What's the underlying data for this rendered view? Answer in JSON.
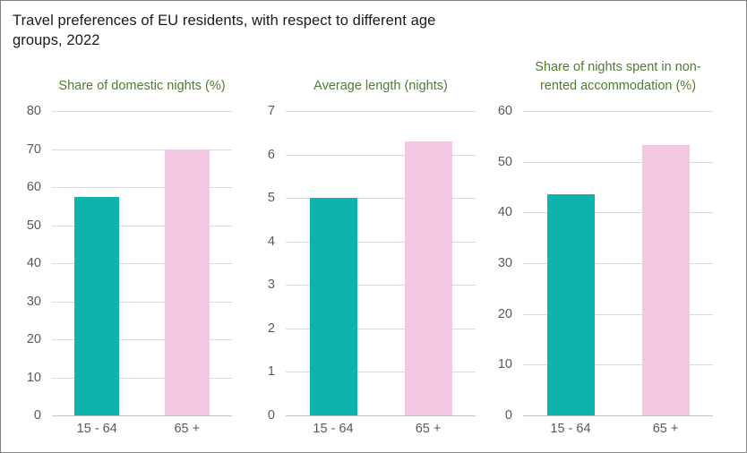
{
  "header": {
    "title": "Travel preferences of EU residents, with respect to different age groups, 2022",
    "title_line1": "Travel preferences of EU residents, with respect to different age",
    "title_line2": "groups, 2022"
  },
  "colors": {
    "bar_age_15_64": "#0db4ab",
    "bar_age_65_plus": "#f4c8e3",
    "panel_title_text": "#507c32",
    "main_title_text": "#1a1a1a",
    "axis_text": "#595959",
    "gridline": "#d9d9d9",
    "figure_border": "#7f7f7f"
  },
  "chart_data": [
    {
      "type": "bar",
      "title": "Share of domestic nights (%)",
      "categories": [
        "15 - 64",
        "65 +"
      ],
      "values": [
        57.3,
        70
      ],
      "ylim": [
        0,
        80
      ],
      "ytick_step": 10,
      "yticks": [
        0,
        10,
        20,
        30,
        40,
        50,
        60,
        70,
        80
      ],
      "grid": true,
      "legend": "none",
      "bar_colors": [
        "#0db4ab",
        "#f4c8e3"
      ]
    },
    {
      "type": "bar",
      "title": "Average length (nights)",
      "categories": [
        "15 - 64",
        "65 +"
      ],
      "values": [
        5.0,
        6.3
      ],
      "ylim": [
        0,
        7
      ],
      "ytick_step": 1,
      "yticks": [
        0,
        1,
        2,
        3,
        4,
        5,
        6,
        7
      ],
      "grid": true,
      "legend": "none",
      "bar_colors": [
        "#0db4ab",
        "#f4c8e3"
      ]
    },
    {
      "type": "bar",
      "title": "Share of nights spent in non-rented accommodation (%)",
      "categories": [
        "15 - 64",
        "65 +"
      ],
      "values": [
        43.6,
        53.3
      ],
      "ylim": [
        0,
        60
      ],
      "ytick_step": 10,
      "yticks": [
        0,
        10,
        20,
        30,
        40,
        50,
        60
      ],
      "grid": true,
      "legend": "none",
      "bar_colors": [
        "#0db4ab",
        "#f4c8e3"
      ]
    }
  ]
}
